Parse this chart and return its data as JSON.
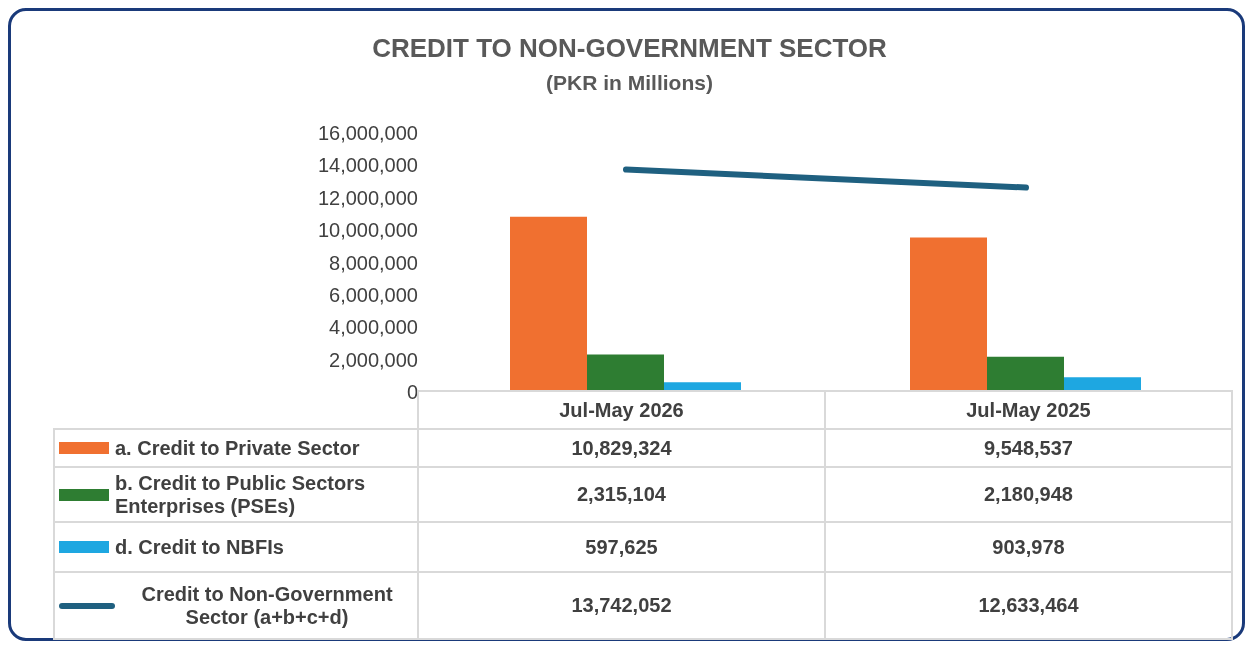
{
  "chart_data": {
    "type": "bar",
    "title": "CREDIT TO NON-GOVERNMENT SECTOR",
    "subtitle": "(PKR in Millions)",
    "categories": [
      "Jul-May 2026",
      "Jul-May 2025"
    ],
    "series": [
      {
        "name": "a. Credit to Private Sector",
        "color": "#f07030",
        "values": [
          10829324,
          9548537
        ],
        "value_labels": [
          "10,829,324",
          "9,548,537"
        ]
      },
      {
        "name": "b. Credit to Public Sectors Enterprises (PSEs)",
        "color": "#2e7d32",
        "values": [
          2315104,
          2180948
        ],
        "value_labels": [
          "2,315,104",
          "2,180,948"
        ]
      },
      {
        "name": "d. Credit to NBFIs",
        "color": "#1ea7e1",
        "values": [
          597625,
          903978
        ],
        "value_labels": [
          "597,625",
          "903,978"
        ]
      },
      {
        "name": "Credit to Non-Government Sector (a+b+c+d)",
        "type": "line",
        "color": "#1f6080",
        "values": [
          13742052,
          12633464
        ],
        "value_labels": [
          "13,742,052",
          "12,633,464"
        ]
      }
    ],
    "ylim": [
      0,
      16000000
    ],
    "yticks": [
      0,
      {
        "value": 2000000,
        "label": "2,000,000"
      },
      {
        "value": 4000000,
        "label": "4,000,000"
      },
      {
        "value": 6000000,
        "label": "6,000,000"
      },
      {
        "value": 8000000,
        "label": "8,000,000"
      },
      {
        "value": 10000000,
        "label": "10,000,000"
      },
      {
        "value": 12000000,
        "label": "12,000,000"
      },
      {
        "value": 14000000,
        "label": "14,000,000"
      },
      {
        "value": 16000000,
        "label": "16,000,000"
      }
    ],
    "grid": false,
    "legend": "bottom"
  }
}
